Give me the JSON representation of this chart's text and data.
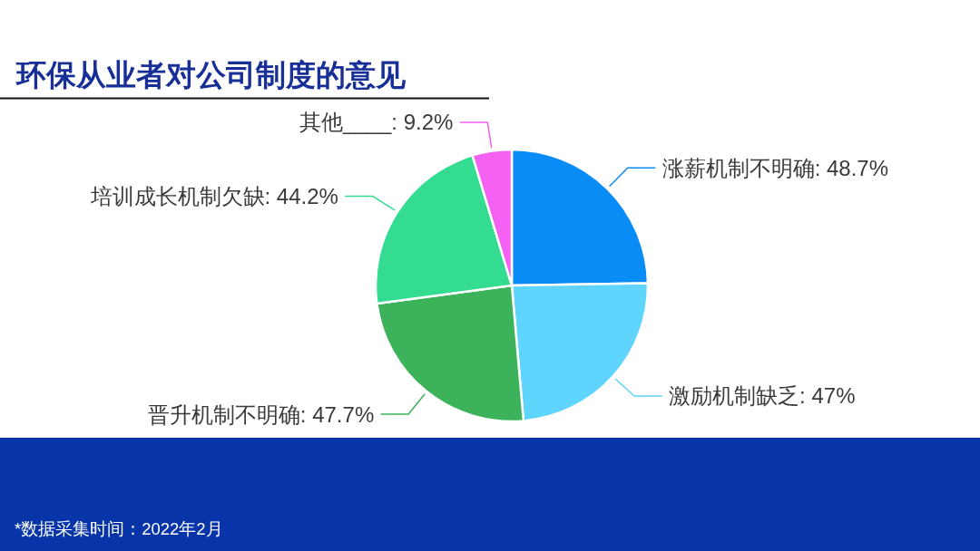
{
  "chart_data": {
    "type": "pie",
    "title": "环保从业者对公司制度的意见",
    "categories": [
      "涨薪机制不明确",
      "激励机制缺乏",
      "晋升机制不明确",
      "培训成长机制欠缺",
      "其他____"
    ],
    "values": [
      48.7,
      47,
      47.7,
      44.2,
      9.2
    ],
    "colors": [
      "#0a8cf6",
      "#5fd5fd",
      "#3cb35a",
      "#34dc91",
      "#f360f2"
    ],
    "value_labels": [
      "48.7%",
      "47%",
      "47.7%",
      "44.2%",
      "9.2%"
    ],
    "annotations": [
      "*数据采集时间：2022年2月"
    ]
  }
}
